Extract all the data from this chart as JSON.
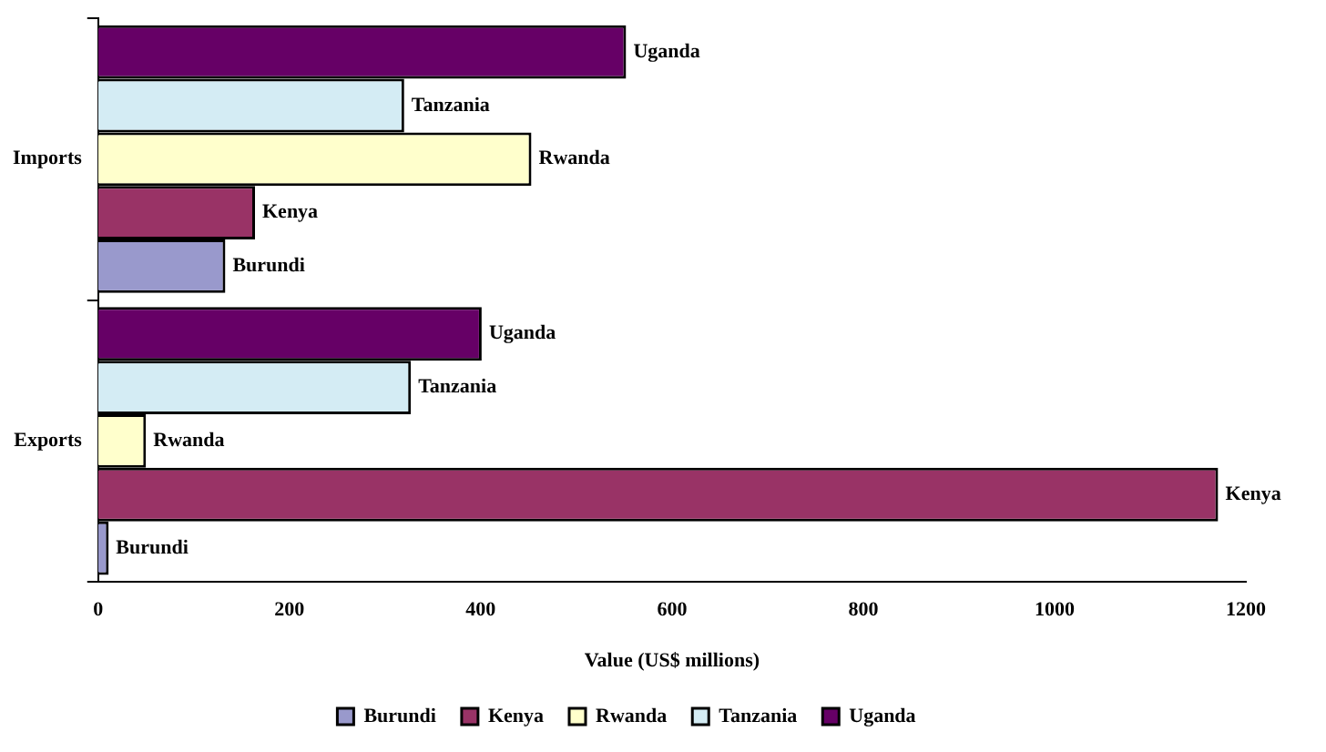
{
  "chart_data": {
    "type": "bar",
    "orientation": "horizontal",
    "categories": [
      "Imports",
      "Exports"
    ],
    "series": [
      {
        "name": "Burundi",
        "color": "#9999cc",
        "values": [
          133,
          11
        ]
      },
      {
        "name": "Kenya",
        "color": "#993366",
        "values": [
          164,
          1171
        ]
      },
      {
        "name": "Rwanda",
        "color": "#ffffcc",
        "values": [
          453,
          50
        ]
      },
      {
        "name": "Tanzania",
        "color": "#d4ecf4",
        "values": [
          320,
          327
        ]
      },
      {
        "name": "Uganda",
        "color": "#660066",
        "values": [
          552,
          401
        ]
      }
    ],
    "xlabel": "Value (US$ millions)",
    "xlim": [
      0,
      1200
    ],
    "xticks": [
      0,
      200,
      400,
      600,
      800,
      1000,
      1200
    ],
    "grid": false,
    "legend": "bottom"
  }
}
